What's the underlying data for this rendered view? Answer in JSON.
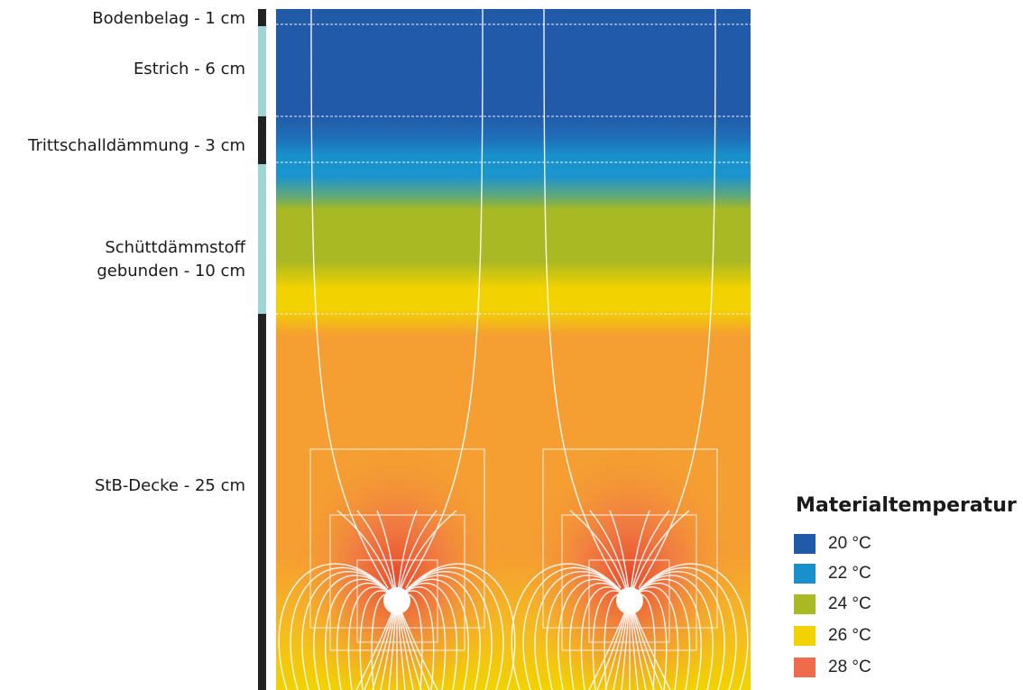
{
  "layers": [
    {
      "label": "Bodenbelag - 1 cm"
    },
    {
      "label": "Estrich - 6 cm"
    },
    {
      "label": "Trittschalldämmung - 3 cm"
    },
    {
      "label": "Schüttdämmstoff\ngebunden - 10 cm"
    },
    {
      "label": "StB-Decke - 25 cm"
    }
  ],
  "legend": {
    "title": "Materialtemperatur",
    "items": [
      {
        "label": "20 °C",
        "color": "#215aa8"
      },
      {
        "label": "22 °C",
        "color": "#1890cc"
      },
      {
        "label": "24 °C",
        "color": "#a9b923"
      },
      {
        "label": "26 °C",
        "color": "#f2d200"
      },
      {
        "label": "28 °C",
        "color": "#ee6b4c"
      }
    ]
  },
  "colors": {
    "blue": "#215aa8",
    "lightblue": "#1890cc",
    "green": "#a9b923",
    "yellow": "#f2d200",
    "orange": "#f59e32",
    "hot": "#e8442a",
    "divider_dark": "#222222",
    "divider_light": "#9dd6d4"
  }
}
